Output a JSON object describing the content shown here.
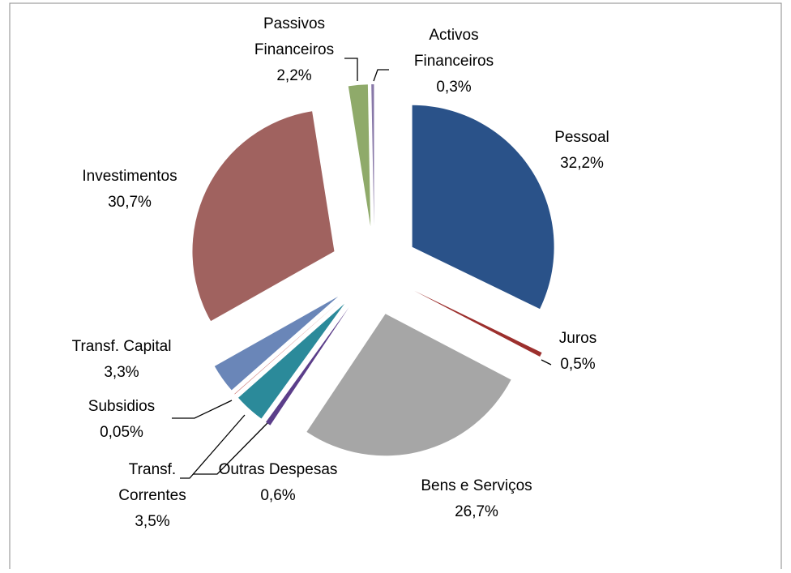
{
  "chart_data": {
    "type": "pie",
    "categories": [
      "Pessoal",
      "Juros",
      "Bens e Serviços",
      "Outras Despesas",
      "Transf. Correntes",
      "Subsidios",
      "Transf. Capital",
      "Investimentos",
      "Passivos Financeiros",
      "Activos Financeiros"
    ],
    "values": [
      32.2,
      0.5,
      26.7,
      0.6,
      3.5,
      0.05,
      3.3,
      30.7,
      2.2,
      0.3
    ],
    "value_labels": [
      "32,2%",
      "0,5%",
      "26,7%",
      "0,6%",
      "3,5%",
      "0,05%",
      "3,3%",
      "30,7%",
      "2,2%",
      "0,3%"
    ],
    "colors": [
      "#2a5289",
      "#9c2f2d",
      "#a6a6a6",
      "#5b3e8a",
      "#2b8a9a",
      "#c0504d",
      "#6a86b8",
      "#a0625f",
      "#8faa6a",
      "#8878a8"
    ]
  }
}
